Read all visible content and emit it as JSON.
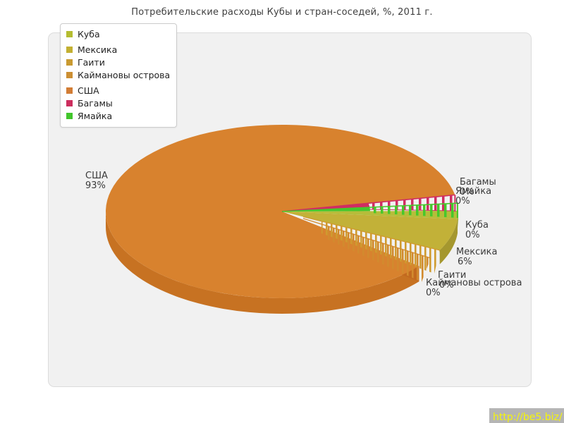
{
  "title": "Потребительские расходы Кубы и стран-соседей, %, 2011 г.",
  "watermark": {
    "text": "http://be5.biz/"
  },
  "legend": {
    "items": [
      {
        "label": "Куба",
        "color": "#b5bd31"
      },
      {
        "label": "Мексика",
        "color": "#c3b032"
      },
      {
        "label": "Гаити",
        "color": "#c99a31"
      },
      {
        "label": "Каймановы острова",
        "color": "#cc8f33"
      },
      {
        "label": "США",
        "color": "#d27d35"
      },
      {
        "label": "Багамы",
        "color": "#cc2e5e"
      },
      {
        "label": "Ямайка",
        "color": "#42c62c"
      }
    ]
  },
  "chart_data": {
    "type": "pie",
    "style": "3d-exploded-pie",
    "title": "Потребительские расходы Кубы и стран-соседей, %, 2011 г.",
    "unit": "%",
    "year": "2011 г.",
    "categories": [
      "Куба",
      "Мексика",
      "Гаити",
      "Каймановы острова",
      "США",
      "Багамы",
      "Ямайка"
    ],
    "values": [
      0,
      6,
      0,
      0,
      93,
      0,
      0
    ],
    "display_values": [
      "0%",
      "6%",
      "0%",
      "0%",
      "93%",
      "0%",
      "0%"
    ],
    "colors": [
      "#b5bd31",
      "#c3b032",
      "#c99a31",
      "#cc8f33",
      "#d27d35",
      "#cc2e5e",
      "#42c62c"
    ],
    "legend_position": "top-left",
    "labels_on_chart": true
  },
  "pie": {
    "colors": {
      "usa_top": "#d8822e",
      "usa_side": "#c77222",
      "usa_cut": "#c2691f",
      "mexico_top": "#c2b138",
      "mexico_side": "#a5972e",
      "cuba_top": "#b6bd3a",
      "cuba_side": "#9fa52e",
      "bahamas": "#d02d62",
      "jamaica": "#46c72c",
      "haiti": "#cf9b2f",
      "cayman": "#d28a2e"
    }
  }
}
